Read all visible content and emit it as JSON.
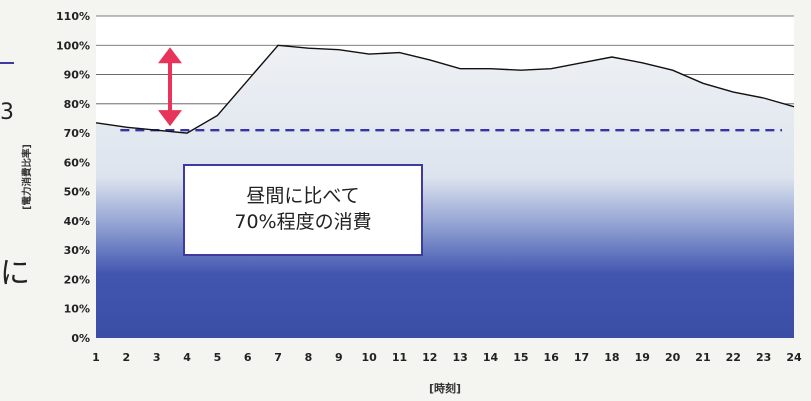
{
  "chart_data": {
    "type": "area",
    "x": [
      1,
      2,
      3,
      4,
      5,
      6,
      7,
      8,
      9,
      10,
      11,
      12,
      13,
      14,
      15,
      16,
      17,
      18,
      19,
      20,
      21,
      22,
      23,
      24
    ],
    "series": [
      {
        "values": [
          73.5,
          72,
          71,
          70,
          76,
          88,
          100,
          99,
          98.5,
          97,
          97.5,
          95,
          92,
          92,
          91.5,
          92,
          94,
          96,
          94,
          91.5,
          87,
          84,
          82,
          79
        ]
      }
    ],
    "reference_value": 71,
    "ylim": [
      0,
      110
    ],
    "y_ticks": [
      0,
      10,
      20,
      30,
      40,
      50,
      60,
      70,
      80,
      90,
      100,
      110
    ],
    "y_tick_labels": [
      "0%",
      "10%",
      "20%",
      "30%",
      "40%",
      "50%",
      "60%",
      "70%",
      "80%",
      "90%",
      "100%",
      "110%"
    ],
    "xlabel": "[時刻]",
    "ylabel": "[電力消費比率]",
    "annotation_lines": [
      "昼間に比べて",
      "70%程度の消費"
    ],
    "colors": {
      "area_top": "#eef1f4",
      "area_bottom": "#3a4fa8",
      "line": "#111111",
      "reference": "#3535a8",
      "arrow": "#e8345a",
      "box_border": "#3d3aa0"
    }
  },
  "side": {
    "left_char": "に",
    "left_mark": "3"
  }
}
